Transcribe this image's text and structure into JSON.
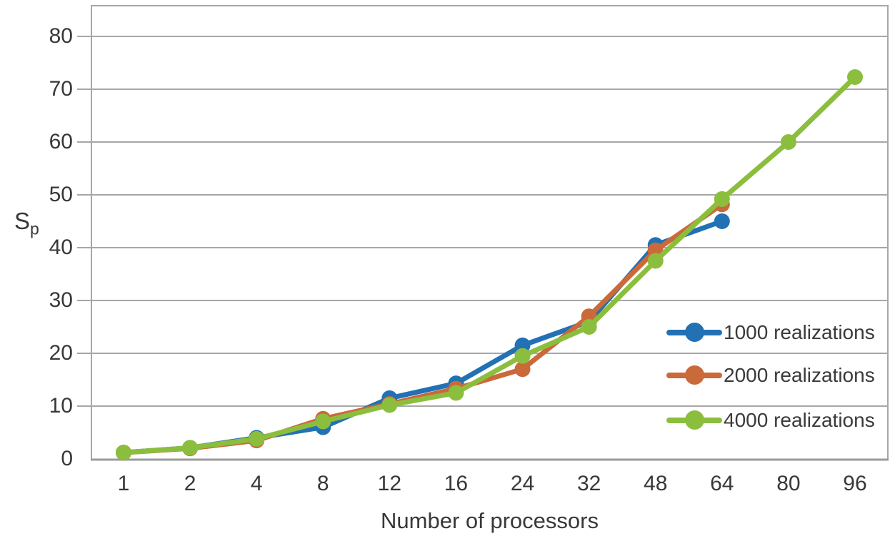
{
  "chart_data": {
    "type": "line",
    "title": "",
    "xlabel": "Number of processors",
    "ylabel": "Sp",
    "ylabel_main": "S",
    "ylabel_sub": "p",
    "categories": [
      1,
      2,
      4,
      8,
      12,
      16,
      24,
      32,
      48,
      64,
      80,
      96
    ],
    "yticks": [
      0,
      10,
      20,
      30,
      40,
      50,
      60,
      70,
      80
    ],
    "ylim": [
      0,
      86
    ],
    "grid": "horizontal",
    "grid_color": "#a7a7a7",
    "axis_color": "#9a9a9a",
    "text_color": "#383838",
    "legend_position": "inside-right",
    "series": [
      {
        "name": "1000 realizations",
        "color": "#2271b4",
        "values": [
          1.2,
          2.1,
          4.0,
          6.0,
          11.5,
          14.3,
          21.5,
          26.0,
          40.5,
          45.0,
          null,
          null
        ]
      },
      {
        "name": "2000 realizations",
        "color": "#ca6939",
        "values": [
          1.2,
          2.0,
          3.5,
          7.6,
          10.4,
          13.3,
          17.0,
          27.0,
          39.5,
          48.2,
          null,
          null
        ]
      },
      {
        "name": "4000 realizations",
        "color": "#8cbe3e",
        "values": [
          1.2,
          2.1,
          3.8,
          7.1,
          10.2,
          12.5,
          19.5,
          25.0,
          37.5,
          49.2,
          60.0,
          72.3
        ]
      }
    ]
  }
}
